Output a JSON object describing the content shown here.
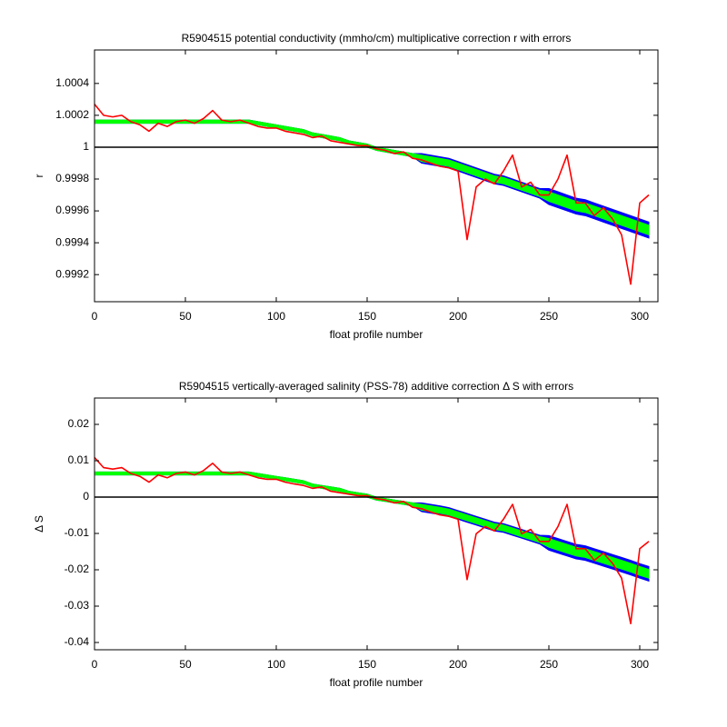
{
  "chart_data": [
    {
      "type": "line",
      "title": "R5904515 potential conductivity (mmho/cm) multiplicative correction r with errors",
      "xlabel": "float profile number",
      "ylabel": "r",
      "xlim": [
        0,
        310
      ],
      "xticks": [
        0,
        50,
        100,
        150,
        200,
        250,
        300
      ],
      "ylim": [
        0.99903,
        1.00061
      ],
      "yticks": [
        0.9992,
        0.9994,
        0.9996,
        0.9998,
        1,
        1.0002,
        1.0004
      ],
      "hline": 1,
      "grid": false,
      "x": [
        0,
        5,
        10,
        15,
        20,
        25,
        30,
        35,
        40,
        45,
        50,
        55,
        60,
        65,
        70,
        75,
        80,
        85,
        90,
        95,
        100,
        105,
        110,
        115,
        120,
        125,
        130,
        135,
        140,
        145,
        150,
        155,
        160,
        165,
        170,
        175,
        180,
        185,
        190,
        195,
        200,
        205,
        210,
        215,
        220,
        225,
        230,
        235,
        240,
        245,
        250,
        255,
        260,
        265,
        270,
        275,
        280,
        285,
        290,
        295,
        300,
        305
      ],
      "series": [
        {
          "style": "band",
          "color": "#0000ff",
          "values": [
            1.00016,
            1.00016,
            1.00016,
            1.00016,
            1.00016,
            1.00016,
            1.00016,
            1.00016,
            1.00016,
            1.00016,
            1.00016,
            1.00016,
            1.00016,
            1.00016,
            1.00016,
            1.00016,
            1.00016,
            1.00016,
            1.00015,
            1.00014,
            1.00013,
            1.00012,
            1.00011,
            1.0001,
            1.00008,
            1.00007,
            1.00006,
            1.00005,
            1.00003,
            1.00002,
            1.00001,
            0.99999,
            0.99998,
            0.99997,
            0.99996,
            0.99995,
            0.99993,
            0.99992,
            0.99991,
            0.9999,
            0.99988,
            0.99986,
            0.99984,
            0.99982,
            0.9998,
            0.99979,
            0.99977,
            0.99975,
            0.99973,
            0.99971,
            0.99969,
            0.99967,
            0.99965,
            0.99963,
            0.99962,
            0.9996,
            0.99958,
            0.99956,
            0.99954,
            0.99952,
            0.9995,
            0.99948
          ],
          "errors": [
            1e-05,
            1e-05,
            1e-05,
            1e-05,
            1e-05,
            1e-05,
            1e-05,
            1e-05,
            1e-05,
            1e-05,
            1e-05,
            1e-05,
            1e-05,
            1e-05,
            1e-05,
            1e-05,
            1e-05,
            1e-05,
            1e-05,
            1e-05,
            1e-05,
            1e-05,
            1e-05,
            1e-05,
            1e-05,
            1e-05,
            1e-05,
            1e-05,
            1e-05,
            1e-05,
            1e-05,
            1e-05,
            1e-05,
            1e-05,
            1e-05,
            1e-05,
            3e-05,
            3e-05,
            3e-05,
            3e-05,
            3e-05,
            3e-05,
            3e-05,
            3e-05,
            3e-05,
            3e-05,
            3e-05,
            3e-05,
            3e-05,
            3e-05,
            5e-05,
            5e-05,
            5e-05,
            5e-05,
            5e-05,
            5e-05,
            5e-05,
            5e-05,
            5e-05,
            5e-05,
            5e-05,
            5e-05
          ]
        },
        {
          "style": "band",
          "color": "#00ff00",
          "values": [
            1.00016,
            1.00016,
            1.00016,
            1.00016,
            1.00016,
            1.00016,
            1.00016,
            1.00016,
            1.00016,
            1.00016,
            1.00016,
            1.00016,
            1.00016,
            1.00016,
            1.00016,
            1.00016,
            1.00016,
            1.00016,
            1.00015,
            1.00014,
            1.00013,
            1.00012,
            1.00011,
            1.0001,
            1.00008,
            1.00007,
            1.00006,
            1.00005,
            1.00003,
            1.00002,
            1.00001,
            0.99999,
            0.99998,
            0.99997,
            0.99996,
            0.99995,
            0.99993,
            0.99992,
            0.99991,
            0.9999,
            0.99988,
            0.99986,
            0.99984,
            0.99982,
            0.9998,
            0.99979,
            0.99977,
            0.99975,
            0.99973,
            0.99971,
            0.99969,
            0.99967,
            0.99965,
            0.99963,
            0.99962,
            0.9996,
            0.99958,
            0.99956,
            0.99954,
            0.99952,
            0.9995,
            0.99948
          ],
          "errors": [
            1e-05,
            1e-05,
            1e-05,
            1e-05,
            1e-05,
            1e-05,
            1e-05,
            1e-05,
            1e-05,
            1e-05,
            1e-05,
            1e-05,
            1e-05,
            1e-05,
            1e-05,
            1e-05,
            1e-05,
            1e-05,
            1e-05,
            1e-05,
            1e-05,
            1e-05,
            1e-05,
            1e-05,
            1e-05,
            1e-05,
            1e-05,
            1e-05,
            1e-05,
            1e-05,
            1e-05,
            1e-05,
            1e-05,
            1e-05,
            1e-05,
            1e-05,
            2e-05,
            2e-05,
            2e-05,
            2e-05,
            2e-05,
            2e-05,
            2e-05,
            2e-05,
            2e-05,
            2e-05,
            2e-05,
            2e-05,
            2e-05,
            2e-05,
            3e-05,
            3e-05,
            3e-05,
            3e-05,
            3e-05,
            3e-05,
            3e-05,
            3e-05,
            3e-05,
            3e-05,
            3e-05,
            3e-05
          ]
        },
        {
          "style": "line",
          "color": "#ff0000",
          "values": [
            1.00027,
            1.0002,
            1.00019,
            1.0002,
            1.00016,
            1.00014,
            1.0001,
            1.00015,
            1.00013,
            1.00016,
            1.00017,
            1.00015,
            1.00018,
            1.00023,
            1.00017,
            1.00016,
            1.00017,
            1.00015,
            1.00013,
            1.00012,
            1.00012,
            1.0001,
            1.00009,
            1.00008,
            1.00006,
            1.00007,
            1.00004,
            1.00003,
            1.00002,
            1.00001,
            1.00001,
            0.99999,
            0.99998,
            0.99996,
            0.99997,
            0.99993,
            0.99992,
            0.9999,
            0.99988,
            0.99987,
            0.99985,
            0.99942,
            0.99975,
            0.9998,
            0.99977,
            0.99985,
            0.99995,
            0.99975,
            0.99978,
            0.9997,
            0.9997,
            0.9998,
            0.99995,
            0.99965,
            0.99965,
            0.99957,
            0.99962,
            0.99955,
            0.99945,
            0.99914,
            0.99965,
            0.9997
          ]
        }
      ]
    },
    {
      "type": "line",
      "title": "R5904515 vertically-averaged salinity (PSS-78) additive correction Δ S with errors",
      "xlabel": "float profile number",
      "ylabel": "Δ S",
      "xlim": [
        0,
        310
      ],
      "xticks": [
        0,
        50,
        100,
        150,
        200,
        250,
        300
      ],
      "ylim": [
        -0.042,
        0.02725
      ],
      "yticks": [
        -0.04,
        -0.03,
        -0.02,
        -0.01,
        0,
        0.01,
        0.02
      ],
      "hline": 0,
      "grid": false,
      "x": [
        0,
        5,
        10,
        15,
        20,
        25,
        30,
        35,
        40,
        45,
        50,
        55,
        60,
        65,
        70,
        75,
        80,
        85,
        90,
        95,
        100,
        105,
        110,
        115,
        120,
        125,
        130,
        135,
        140,
        145,
        150,
        155,
        160,
        165,
        170,
        175,
        180,
        185,
        190,
        195,
        200,
        205,
        210,
        215,
        220,
        225,
        230,
        235,
        240,
        245,
        250,
        255,
        260,
        265,
        270,
        275,
        280,
        285,
        290,
        295,
        300,
        305
      ],
      "series": [
        {
          "style": "band",
          "color": "#0000ff",
          "values": [
            0.0065,
            0.0065,
            0.0065,
            0.0065,
            0.0065,
            0.0065,
            0.0065,
            0.0065,
            0.0065,
            0.0065,
            0.0065,
            0.0065,
            0.0065,
            0.0065,
            0.0065,
            0.0065,
            0.0065,
            0.0065,
            0.0061,
            0.0057,
            0.0053,
            0.0049,
            0.0045,
            0.0041,
            0.0032,
            0.0028,
            0.0024,
            0.002,
            0.0012,
            0.0008,
            0.0004,
            -0.0004,
            -0.0008,
            -0.0012,
            -0.0016,
            -0.002,
            -0.0028,
            -0.0032,
            -0.0036,
            -0.0041,
            -0.0049,
            -0.0057,
            -0.0065,
            -0.0073,
            -0.0081,
            -0.0085,
            -0.0093,
            -0.0101,
            -0.0109,
            -0.0117,
            -0.0126,
            -0.0134,
            -0.0142,
            -0.015,
            -0.0154,
            -0.0162,
            -0.017,
            -0.0178,
            -0.0186,
            -0.0194,
            -0.0203,
            -0.0211
          ],
          "errors": [
            0.0004,
            0.0004,
            0.0004,
            0.0004,
            0.0004,
            0.0004,
            0.0004,
            0.0004,
            0.0004,
            0.0004,
            0.0004,
            0.0004,
            0.0004,
            0.0004,
            0.0004,
            0.0004,
            0.0004,
            0.0004,
            0.0004,
            0.0004,
            0.0004,
            0.0004,
            0.0004,
            0.0004,
            0.0004,
            0.0004,
            0.0004,
            0.0004,
            0.0004,
            0.0004,
            0.0004,
            0.0004,
            0.0004,
            0.0004,
            0.0004,
            0.0004,
            0.0012,
            0.0012,
            0.0012,
            0.0012,
            0.0012,
            0.0012,
            0.0012,
            0.0012,
            0.0012,
            0.0012,
            0.0012,
            0.0012,
            0.0012,
            0.0012,
            0.002,
            0.002,
            0.002,
            0.002,
            0.002,
            0.002,
            0.002,
            0.002,
            0.002,
            0.002,
            0.002,
            0.002
          ]
        },
        {
          "style": "band",
          "color": "#00ff00",
          "values": [
            0.0065,
            0.0065,
            0.0065,
            0.0065,
            0.0065,
            0.0065,
            0.0065,
            0.0065,
            0.0065,
            0.0065,
            0.0065,
            0.0065,
            0.0065,
            0.0065,
            0.0065,
            0.0065,
            0.0065,
            0.0065,
            0.0061,
            0.0057,
            0.0053,
            0.0049,
            0.0045,
            0.0041,
            0.0032,
            0.0028,
            0.0024,
            0.002,
            0.0012,
            0.0008,
            0.0004,
            -0.0004,
            -0.0008,
            -0.0012,
            -0.0016,
            -0.002,
            -0.0028,
            -0.0032,
            -0.0036,
            -0.0041,
            -0.0049,
            -0.0057,
            -0.0065,
            -0.0073,
            -0.0081,
            -0.0085,
            -0.0093,
            -0.0101,
            -0.0109,
            -0.0117,
            -0.0126,
            -0.0134,
            -0.0142,
            -0.015,
            -0.0154,
            -0.0162,
            -0.017,
            -0.0178,
            -0.0186,
            -0.0194,
            -0.0203,
            -0.0211
          ],
          "errors": [
            0.0004,
            0.0004,
            0.0004,
            0.0004,
            0.0004,
            0.0004,
            0.0004,
            0.0004,
            0.0004,
            0.0004,
            0.0004,
            0.0004,
            0.0004,
            0.0004,
            0.0004,
            0.0004,
            0.0004,
            0.0004,
            0.0004,
            0.0004,
            0.0004,
            0.0004,
            0.0004,
            0.0004,
            0.0004,
            0.0004,
            0.0004,
            0.0004,
            0.0004,
            0.0004,
            0.0004,
            0.0004,
            0.0004,
            0.0004,
            0.0004,
            0.0004,
            0.0008,
            0.0008,
            0.0008,
            0.0008,
            0.0008,
            0.0008,
            0.0008,
            0.0008,
            0.0008,
            0.0008,
            0.0008,
            0.0008,
            0.0008,
            0.0008,
            0.0012,
            0.0012,
            0.0012,
            0.0012,
            0.0012,
            0.0012,
            0.0012,
            0.0012,
            0.0012,
            0.0012,
            0.0012,
            0.0012
          ]
        },
        {
          "style": "line",
          "color": "#ff0000",
          "values": [
            0.0109,
            0.0081,
            0.0077,
            0.0081,
            0.0065,
            0.0057,
            0.0041,
            0.0061,
            0.0053,
            0.0065,
            0.0069,
            0.0061,
            0.0073,
            0.0093,
            0.0069,
            0.0065,
            0.0069,
            0.0061,
            0.0053,
            0.0049,
            0.0049,
            0.0041,
            0.0036,
            0.0032,
            0.0024,
            0.0028,
            0.0016,
            0.0012,
            0.0008,
            0.0004,
            0.0004,
            -0.0004,
            -0.0008,
            -0.0016,
            -0.0012,
            -0.0028,
            -0.0032,
            -0.0041,
            -0.0049,
            -0.0053,
            -0.0061,
            -0.0227,
            -0.0101,
            -0.0081,
            -0.0093,
            -0.0061,
            -0.002,
            -0.0101,
            -0.0089,
            -0.0122,
            -0.0122,
            -0.0081,
            -0.002,
            -0.0142,
            -0.0142,
            -0.0174,
            -0.0154,
            -0.0182,
            -0.0223,
            -0.0348,
            -0.0142,
            -0.0122
          ]
        }
      ]
    }
  ]
}
